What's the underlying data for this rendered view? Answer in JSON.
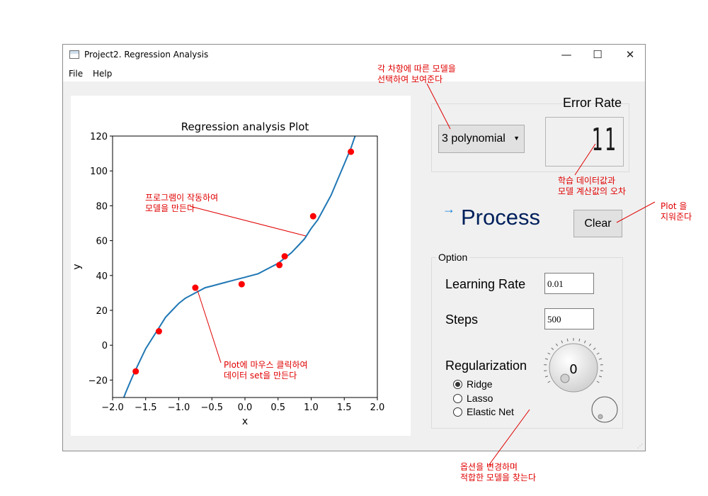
{
  "window": {
    "title": "Project2. Regression Analysis",
    "controls": {
      "minimize": "—",
      "maximize": "☐",
      "close": "✕"
    }
  },
  "menu": {
    "items": [
      "File",
      "Help"
    ]
  },
  "chart_data": {
    "type": "scatter",
    "title": "Regression analysis Plot",
    "xlabel": "x",
    "ylabel": "y",
    "xlim": [
      -2.0,
      2.0
    ],
    "ylim": [
      -30,
      120
    ],
    "xticks": [
      -2.0,
      -1.5,
      -1.0,
      -0.5,
      0.0,
      0.5,
      1.0,
      1.5,
      2.0
    ],
    "xtick_labels": [
      "−2.0",
      "−1.5",
      "−1.0",
      "−0.5",
      "0.0",
      "0.5",
      "1.0",
      "1.5",
      "2.0"
    ],
    "yticks": [
      -20,
      0,
      20,
      40,
      60,
      80,
      100,
      120
    ],
    "ytick_labels": [
      "−20",
      "0",
      "20",
      "40",
      "60",
      "80",
      "100",
      "120"
    ],
    "grid": false,
    "points": {
      "color": "#ff0000",
      "x": [
        -1.65,
        -1.3,
        -0.75,
        -0.05,
        0.52,
        0.6,
        1.03,
        1.6
      ],
      "y": [
        -15,
        8,
        33,
        35,
        46,
        51,
        74,
        111
      ]
    },
    "fit_line": {
      "color": "#1f77b4",
      "x": [
        -1.85,
        -1.8,
        -1.7,
        -1.6,
        -1.5,
        -1.4,
        -1.3,
        -1.2,
        -1.1,
        -1.0,
        -0.9,
        -0.8,
        -0.7,
        -0.6,
        -0.5,
        -0.4,
        -0.3,
        -0.2,
        -0.1,
        0.0,
        0.1,
        0.2,
        0.3,
        0.4,
        0.5,
        0.6,
        0.7,
        0.8,
        0.9,
        1.0,
        1.1,
        1.2,
        1.3,
        1.4,
        1.5,
        1.6,
        1.7
      ],
      "y": [
        -32,
        -27,
        -18,
        -10,
        -2,
        4,
        10,
        16,
        20,
        24,
        27,
        29,
        31,
        33,
        34,
        35,
        36,
        37,
        38,
        39,
        40,
        41,
        43,
        45,
        47,
        50,
        53,
        57,
        61,
        67,
        72,
        79,
        86,
        95,
        104,
        113,
        124
      ]
    }
  },
  "model_select": {
    "value": "3 polynomial"
  },
  "error_rate": {
    "label": "Error Rate",
    "value": "11"
  },
  "process": {
    "arrow": "→",
    "label": "Process"
  },
  "clear_button": {
    "label": "Clear"
  },
  "option": {
    "title": "Option",
    "learning_rate": {
      "label": "Learning Rate",
      "value": "0.01"
    },
    "steps": {
      "label": "Steps",
      "value": "500"
    },
    "regularization": {
      "label": "Regularization",
      "options": [
        "Ridge",
        "Lasso",
        "Elastic Net"
      ],
      "selected": "Ridge"
    },
    "dial_value": "0"
  },
  "annotations": {
    "model": [
      "각 차항에 따른 모델을",
      "선택하여 보여준다"
    ],
    "error": [
      "학습 데이터값과",
      "모델 계산값의 오차"
    ],
    "clear": [
      "Plot 을",
      "지워준다"
    ],
    "program": [
      "프로그램이 작동하여",
      "모델을 만든다"
    ],
    "click": [
      "Plot에 마우스 클릭하여",
      "데이터 set을 만든다"
    ],
    "option": [
      "옵션을 변경하며",
      "적합한 모델을 찾는다"
    ]
  }
}
